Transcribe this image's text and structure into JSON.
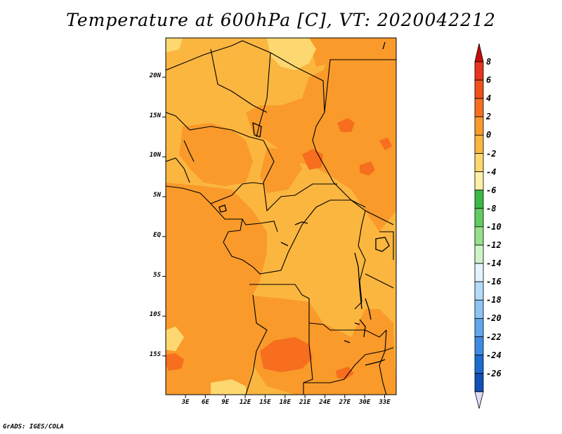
{
  "title": "Temperature at 600hPa [C], VT: 2020042212",
  "credit": "GrADS: IGES/COLA",
  "latitude_labels": [
    "20N",
    "15N",
    "10N",
    "5N",
    "EQ",
    "5S",
    "10S",
    "15S"
  ],
  "longitude_labels": [
    "3E",
    "6E",
    "9E",
    "12E",
    "15E",
    "18E",
    "21E",
    "24E",
    "27E",
    "30E",
    "33E"
  ],
  "colorbar": {
    "labels": [
      "8",
      "6",
      "4",
      "2",
      "0",
      "-2",
      "-4",
      "-6",
      "-8",
      "-10",
      "-12",
      "-14",
      "-16",
      "-18",
      "-20",
      "-22",
      "-24",
      "-26"
    ],
    "colors": [
      "#e8341c",
      "#f0501a",
      "#f66e1e",
      "#f99a2a",
      "#fbb640",
      "#fdd870",
      "#fff0a8",
      "#3cb848",
      "#62cc62",
      "#96e08a",
      "#cdf4c8",
      "#e4f4fc",
      "#b4dcf8",
      "#8cc4f4",
      "#5ea8ec",
      "#3c8ce4",
      "#1c6cd0",
      "#1050b8",
      "#0a2c94",
      "#0a0e6c"
    ],
    "top_arrow_color": "#c80a0a",
    "bottom_arrow_color": "#e0dcf8"
  },
  "field_colors": {
    "base": "#fbb640",
    "warm": "#f99a2a",
    "hot": "#f66e1e",
    "cool": "#fdd870"
  }
}
